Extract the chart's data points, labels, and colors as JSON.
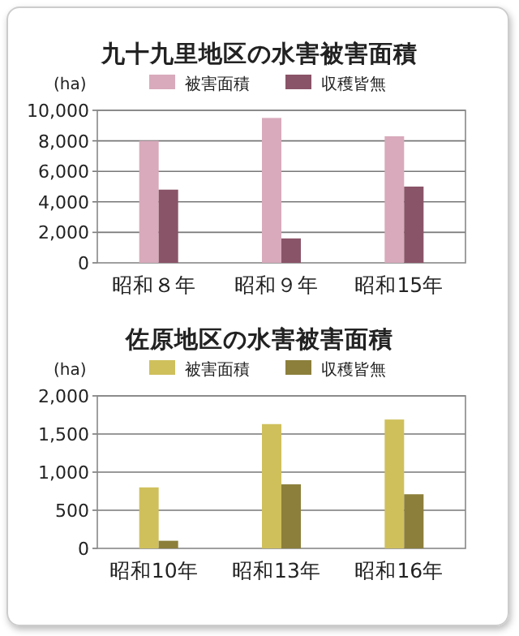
{
  "chart_data": [
    {
      "type": "bar",
      "title": "九十九里地区の水害被害面積",
      "ylabel": "(ha)",
      "categories": [
        "昭和８年",
        "昭和９年",
        "昭和15年"
      ],
      "series": [
        {
          "name": "被害面積",
          "color": "#d8aabb",
          "values": [
            8000,
            9500,
            8300
          ]
        },
        {
          "name": "収穫皆無",
          "color": "#8a5468",
          "values": [
            4800,
            1600,
            5000
          ]
        }
      ],
      "ylim": [
        0,
        10000
      ],
      "yticks": [
        {
          "value": 0,
          "label": "0"
        },
        {
          "value": 2000,
          "label": "2,000"
        },
        {
          "value": 4000,
          "label": "4,000"
        },
        {
          "value": 6000,
          "label": "6,000"
        },
        {
          "value": 8000,
          "label": "8,000"
        },
        {
          "value": 10000,
          "label": "10,000"
        }
      ],
      "grid": "y",
      "legend": "top"
    },
    {
      "type": "bar",
      "title": "佐原地区の水害被害面積",
      "ylabel": "(ha)",
      "categories": [
        "昭和10年",
        "昭和13年",
        "昭和16年"
      ],
      "series": [
        {
          "name": "被害面積",
          "color": "#cfc05c",
          "values": [
            800,
            1630,
            1690
          ]
        },
        {
          "name": "収穫皆無",
          "color": "#8c7f3b",
          "values": [
            100,
            840,
            710
          ]
        }
      ],
      "ylim": [
        0,
        2000
      ],
      "yticks": [
        {
          "value": 0,
          "label": "0"
        },
        {
          "value": 500,
          "label": "500"
        },
        {
          "value": 1000,
          "label": "1,000"
        },
        {
          "value": 1500,
          "label": "1,500"
        },
        {
          "value": 2000,
          "label": "2,000"
        }
      ],
      "grid": "y",
      "legend": "top"
    }
  ]
}
